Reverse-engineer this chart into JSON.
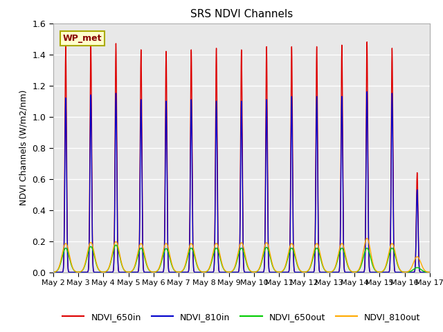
{
  "title": "SRS NDVI Channels",
  "ylabel": "NDVI Channels (W/m2/nm)",
  "annotation": "WP_met",
  "plot_bg_color": "#e8e8e8",
  "fig_bg_color": "#ffffff",
  "ylim": [
    0.0,
    1.6
  ],
  "xlim": [
    2,
    17
  ],
  "day_peaks": {
    "NDVI_650in": [
      1.45,
      1.46,
      1.47,
      1.43,
      1.42,
      1.43,
      1.44,
      1.43,
      1.45,
      1.45,
      1.45,
      1.46,
      1.48,
      1.44,
      0.64
    ],
    "NDVI_810in": [
      1.12,
      1.14,
      1.15,
      1.11,
      1.1,
      1.11,
      1.1,
      1.1,
      1.11,
      1.13,
      1.13,
      1.13,
      1.16,
      1.15,
      0.53
    ],
    "NDVI_650out": [
      0.155,
      0.165,
      0.175,
      0.155,
      0.152,
      0.155,
      0.155,
      0.155,
      0.16,
      0.155,
      0.155,
      0.155,
      0.155,
      0.155,
      0.03
    ],
    "NDVI_810out": [
      0.185,
      0.192,
      0.197,
      0.185,
      0.185,
      0.185,
      0.186,
      0.19,
      0.19,
      0.185,
      0.185,
      0.185,
      0.218,
      0.185,
      0.1
    ]
  },
  "start_day": 2,
  "n_days": 15,
  "points_per_day": 500,
  "peak_hour_in": 12.0,
  "peak_hour_out": 12.0,
  "peak_sigma_in_hours": 0.8,
  "peak_sigma_out_hours": 3.5,
  "legend_entries": [
    "NDVI_650in",
    "NDVI_810in",
    "NDVI_650out",
    "NDVI_810out"
  ],
  "legend_colors": [
    "#dd0000",
    "#0000cc",
    "#00cc00",
    "#ffaa00"
  ],
  "linewidths": [
    1.0,
    1.0,
    1.0,
    1.0
  ],
  "xtick_labels": [
    "May 2",
    "May 3",
    "May 4",
    "May 5",
    "May 6",
    "May 7",
    "May 8",
    "May 9",
    "May 10",
    "May 11",
    "May 12",
    "May 13",
    "May 14",
    "May 15",
    "May 16",
    "May 17"
  ],
  "xtick_positions": [
    2,
    3,
    4,
    5,
    6,
    7,
    8,
    9,
    10,
    11,
    12,
    13,
    14,
    15,
    16,
    17
  ],
  "ytick_labels": [
    "0.0",
    "0.2",
    "0.4",
    "0.6",
    "0.8",
    "1.0",
    "1.2",
    "1.4",
    "1.6"
  ],
  "ytick_positions": [
    0.0,
    0.2,
    0.4,
    0.6,
    0.8,
    1.0,
    1.2,
    1.4,
    1.6
  ]
}
